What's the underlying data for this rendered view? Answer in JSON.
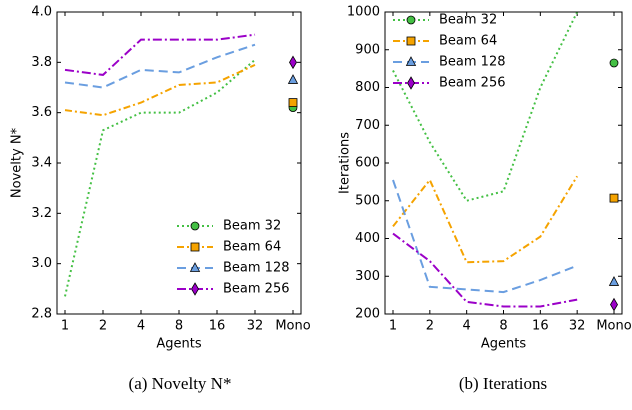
{
  "chart_data": [
    {
      "type": "line",
      "caption": "(a) Novelty N*",
      "xlabel": "Agents",
      "ylabel": "Novelty N*",
      "categories": [
        "1",
        "2",
        "4",
        "8",
        "16",
        "32",
        "Mono"
      ],
      "ylim": [
        2.8,
        4.0
      ],
      "yticks": [
        2.8,
        {
          "value": 3,
          "label": "3.0"
        },
        3.2,
        3.4,
        3.6,
        3.8,
        {
          "value": 4,
          "label": "4.0"
        }
      ],
      "legend": "lower right",
      "series": [
        {
          "name": "Beam 32",
          "color": "#44c044",
          "marker": "circle",
          "dash": "2,3",
          "values": [
            2.87,
            3.53,
            3.6,
            3.6,
            3.68,
            3.81,
            3.62
          ]
        },
        {
          "name": "Beam 64",
          "color": "#f5a300",
          "marker": "square",
          "dash": "7,3,2,3",
          "values": [
            3.61,
            3.59,
            3.64,
            3.71,
            3.72,
            3.79,
            3.64
          ]
        },
        {
          "name": "Beam 128",
          "color": "#6a9ee0",
          "marker": "triangle",
          "dash": "9,5",
          "values": [
            3.72,
            3.7,
            3.77,
            3.76,
            3.82,
            3.87,
            3.73
          ]
        },
        {
          "name": "Beam 256",
          "color": "#9b00c8",
          "marker": "diamond",
          "dash": "9,3,2,3",
          "values": [
            3.77,
            3.75,
            3.89,
            3.89,
            3.89,
            3.91,
            3.8
          ]
        }
      ]
    },
    {
      "type": "line",
      "caption": "(b) Iterations",
      "xlabel": "Agents",
      "ylabel": "Iterations",
      "categories": [
        "1",
        "2",
        "4",
        "8",
        "16",
        "32",
        "Mono"
      ],
      "ylim": [
        200,
        1000
      ],
      "yticks": [
        200,
        300,
        400,
        500,
        600,
        700,
        800,
        900,
        1000
      ],
      "legend": "upper left",
      "series": [
        {
          "name": "Beam 32",
          "color": "#44c044",
          "marker": "circle",
          "dash": "2,3",
          "values": [
            845,
            655,
            500,
            525,
            800,
            1000,
            865
          ]
        },
        {
          "name": "Beam 64",
          "color": "#f5a300",
          "marker": "square",
          "dash": "7,3,2,3",
          "values": [
            432,
            555,
            337,
            340,
            405,
            565,
            507
          ]
        },
        {
          "name": "Beam 128",
          "color": "#6a9ee0",
          "marker": "triangle",
          "dash": "9,5",
          "values": [
            555,
            272,
            265,
            258,
            290,
            328,
            285
          ]
        },
        {
          "name": "Beam 256",
          "color": "#9b00c8",
          "marker": "diamond",
          "dash": "9,3,2,3",
          "values": [
            413,
            340,
            232,
            220,
            220,
            238,
            225
          ]
        }
      ]
    }
  ]
}
